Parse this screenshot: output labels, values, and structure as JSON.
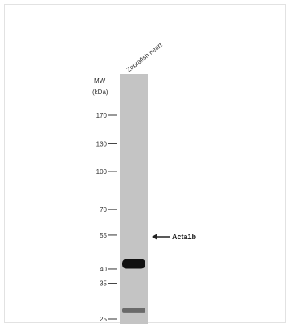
{
  "lane_label": "Zebrafish heart",
  "mw_header": {
    "line1": "MW",
    "line2": "(kDa)"
  },
  "markers": [
    {
      "label": "170",
      "kda": 170
    },
    {
      "label": "130",
      "kda": 130
    },
    {
      "label": "100",
      "kda": 100
    },
    {
      "label": "70",
      "kda": 70
    },
    {
      "label": "55",
      "kda": 55
    },
    {
      "label": "40",
      "kda": 40
    },
    {
      "label": "35",
      "kda": 35
    },
    {
      "label": "25",
      "kda": 25
    }
  ],
  "bands": [
    {
      "kda": 42,
      "intensity": "strong"
    },
    {
      "kda": 27,
      "intensity": "faint"
    }
  ],
  "target": {
    "label": "Acta1b",
    "kda": 42
  },
  "colors": {
    "lane": "#c4c4c4",
    "band_strong": "#111111",
    "band_faint": "#6a6a6a",
    "text": "#333333"
  }
}
